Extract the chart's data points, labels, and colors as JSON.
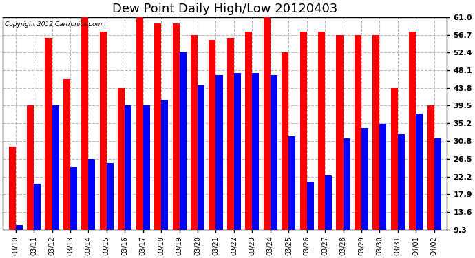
{
  "title": "Dew Point Daily High/Low 20120403",
  "copyright": "Copyright 2012 Cartronics.com",
  "dates": [
    "03/10",
    "03/11",
    "03/12",
    "03/13",
    "03/14",
    "03/15",
    "03/16",
    "03/17",
    "03/18",
    "03/19",
    "03/20",
    "03/21",
    "03/22",
    "03/23",
    "03/24",
    "03/25",
    "03/26",
    "03/27",
    "03/28",
    "03/29",
    "03/30",
    "03/31",
    "04/01",
    "04/02"
  ],
  "high": [
    29.5,
    39.5,
    56.0,
    46.0,
    61.0,
    57.5,
    43.8,
    61.0,
    59.5,
    59.5,
    56.7,
    55.5,
    56.0,
    57.5,
    61.0,
    52.4,
    57.5,
    57.5,
    56.7,
    56.7,
    56.7,
    43.8,
    57.5,
    39.5
  ],
  "low": [
    10.5,
    20.5,
    39.5,
    24.5,
    26.5,
    25.5,
    39.5,
    39.5,
    41.0,
    52.4,
    44.5,
    47.0,
    47.5,
    47.5,
    47.0,
    32.0,
    21.0,
    22.5,
    31.5,
    34.0,
    35.0,
    32.5,
    37.5,
    31.5
  ],
  "yticks": [
    9.3,
    13.6,
    17.9,
    22.2,
    26.5,
    30.8,
    35.2,
    39.5,
    43.8,
    48.1,
    52.4,
    56.7,
    61.0
  ],
  "ymin": 9.3,
  "ymax": 61.0,
  "high_color": "#ff0000",
  "low_color": "#0000ff",
  "bg_color": "#ffffff",
  "grid_color": "#bbbbbb",
  "title_fontsize": 13,
  "bar_width": 0.38
}
